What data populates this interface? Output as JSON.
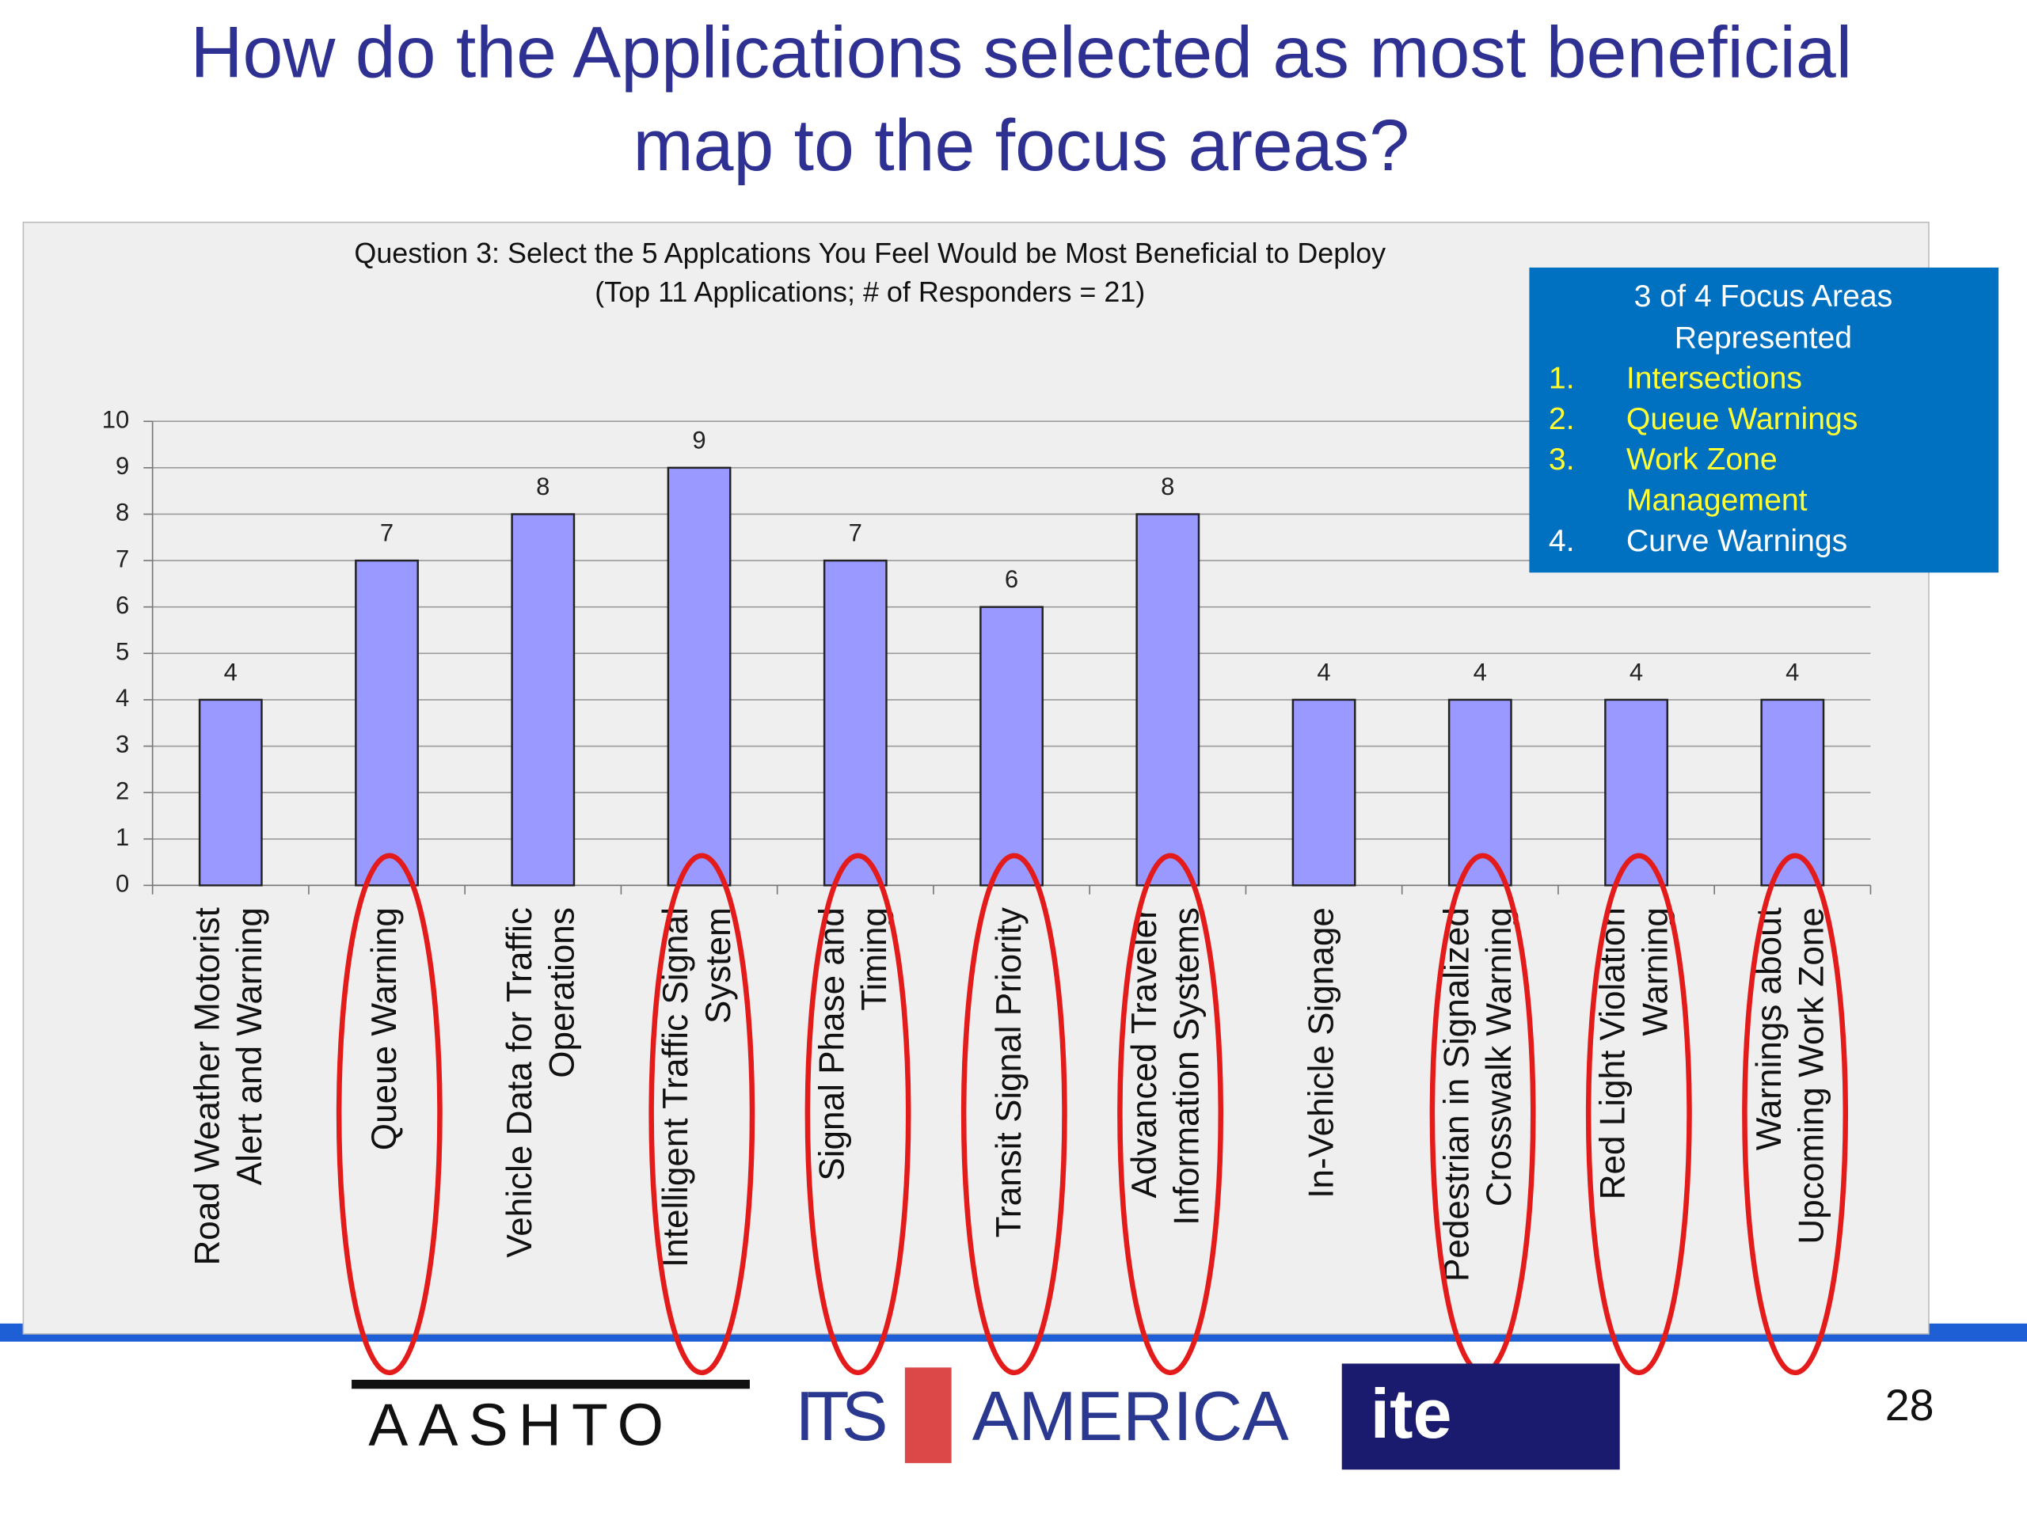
{
  "slide": {
    "title": "How do the Applications selected as most beneficial\nmap to the focus areas?",
    "callout": {
      "heading": "3 of 4 Focus Areas\nRepresented",
      "items": [
        {
          "number": "1.",
          "text": "Intersections"
        },
        {
          "number": "2.",
          "text": "Queue Warnings"
        },
        {
          "number": "3.",
          "text": "Work Zone\nManagement"
        },
        {
          "number": "4.",
          "text": "Curve Warnings"
        }
      ]
    },
    "logos": [
      "AASHTO",
      "ITS",
      "AMERICA",
      "ite"
    ],
    "page_number": "28"
  },
  "chart_data": {
    "type": "bar",
    "title": "Question 3: Select the 5 Applcations You Feel Would be Most Beneficial to Deploy\n(Top 11 Applications;  # of Responders = 21)",
    "categories": [
      "Road Weather Motorist\nAlert and Warning",
      "Queue Warning",
      "Vehicle Data for Traffic\nOperations",
      "Intelligent Traffic Signal\nSystem",
      "Signal Phase and\nTiming",
      "Transit Signal Priority",
      "Advanced Traveler\nInformation Systems",
      "In-Vehicle Signage",
      "Pedestrian in Signalized\nCrosswalk Warning",
      "Red Light Violation\nWarning",
      "Warnings about\nUpcoming Work Zone"
    ],
    "values": [
      4,
      7,
      8,
      9,
      7,
      6,
      8,
      4,
      4,
      4,
      4
    ],
    "circled": [
      false,
      true,
      false,
      true,
      true,
      true,
      true,
      false,
      true,
      true,
      true
    ],
    "color": "#9999ff",
    "circle_color": "#e31b1b",
    "ylim": [
      0,
      10
    ],
    "yticks": [
      0,
      1,
      2,
      3,
      4,
      5,
      6,
      7,
      8,
      9,
      10
    ],
    "grid": true
  }
}
